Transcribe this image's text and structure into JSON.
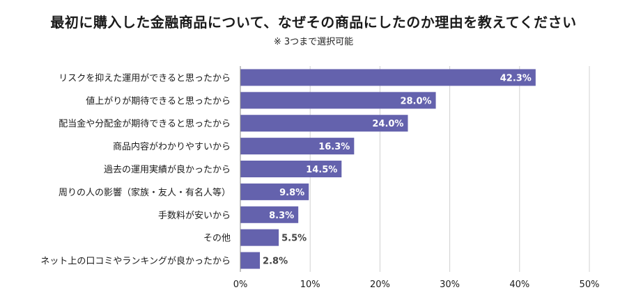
{
  "title": "最初に購入した金融商品について、なぜその商品にしたのか理由を教えてください",
  "subtitle": "※ 3つまで選択可能",
  "chart_data": {
    "type": "bar",
    "orientation": "horizontal",
    "categories": [
      "リスクを抑えた運用ができると思ったから",
      "値上がりが期待できると思ったから",
      "配当金や分配金が期待できると思ったから",
      "商品内容がわかりやすいから",
      "過去の運用実績が良かったから",
      "周りの人の影響（家族・友人・有名人等）",
      "手数料が安いから",
      "その他",
      "ネット上の口コミやランキングが良かったから"
    ],
    "values": [
      42.3,
      28.0,
      24.0,
      16.3,
      14.5,
      9.8,
      8.3,
      5.5,
      2.8
    ],
    "value_labels": [
      "42.3%",
      "28.0%",
      "24.0%",
      "16.3%",
      "14.5%",
      "9.8%",
      "8.3%",
      "5.5%",
      "2.8%"
    ],
    "xlim": [
      0,
      50
    ],
    "xticks": [
      0,
      10,
      20,
      30,
      40,
      50
    ],
    "xtick_labels": [
      "0%",
      "10%",
      "20%",
      "30%",
      "40%",
      "50%"
    ],
    "grid": true,
    "bar_color": "#6462ad",
    "label_inside_color": "#ffffff",
    "label_outside_color": "#444444"
  }
}
